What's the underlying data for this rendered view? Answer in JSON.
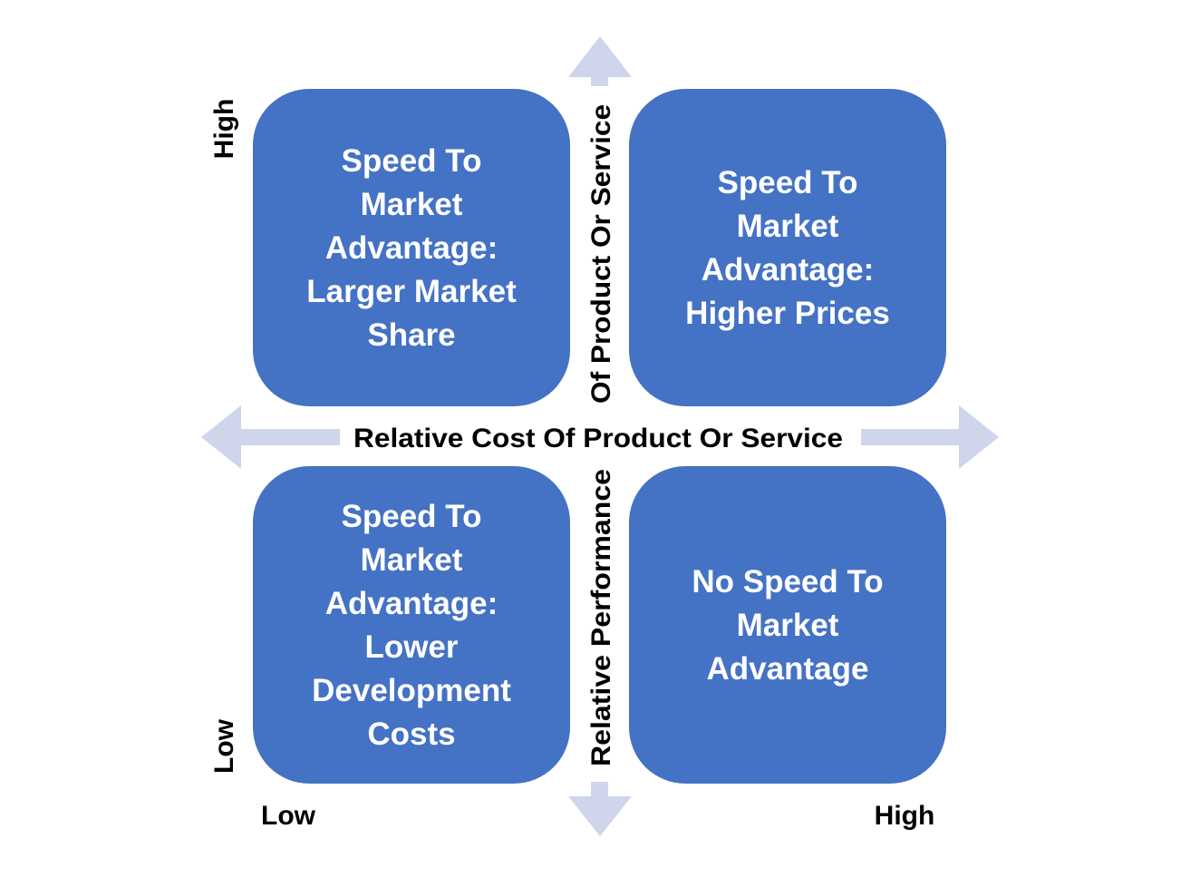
{
  "colors": {
    "box": "#4472C4",
    "arrow": "#CFD5EA",
    "box_text": "#FFFFFF",
    "label_text": "#000000"
  },
  "x_axis": {
    "label": "Relative Cost Of Product Or Service",
    "low": "Low",
    "high": "High"
  },
  "y_axis": {
    "label_top": "Of Product Or Service",
    "label_bottom": "Relative Performance",
    "low": "Low",
    "high": "High"
  },
  "quadrants": {
    "top_left": {
      "lines": [
        "Speed To",
        "Market",
        "Advantage:",
        "Larger Market",
        "Share"
      ]
    },
    "top_right": {
      "lines": [
        "Speed To",
        "Market",
        "Advantage:",
        "Higher Prices"
      ]
    },
    "bottom_left": {
      "lines": [
        "Speed To",
        "Market",
        "Advantage:",
        "Lower",
        "Development",
        "Costs"
      ]
    },
    "bottom_right": {
      "lines": [
        "No Speed To",
        "Market",
        "Advantage"
      ]
    }
  }
}
